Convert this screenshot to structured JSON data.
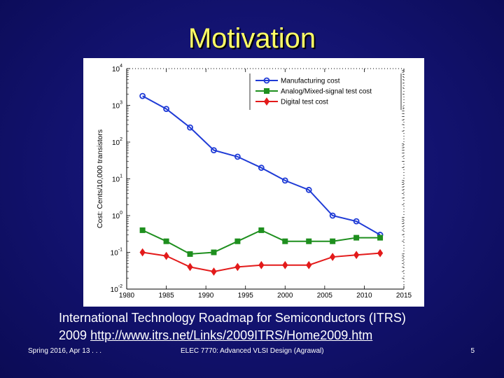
{
  "slide": {
    "title": "Motivation",
    "caption_line1": "International Technology Roadmap for Semiconductors (ITRS)",
    "caption_year": "2009",
    "caption_link": "http://www.itrs.net/Links/2009ITRS/Home2009.htm",
    "footer_left": "Spring 2016, Apr 13 . . .",
    "footer_center": "ELEC 7770: Advanced VLSI Design (Agrawal)",
    "footer_right": "5"
  },
  "colors": {
    "background": "#12126e",
    "title": "#ffff66",
    "manufacturing": "#1f3bd6",
    "analog": "#1e8f1e",
    "digital": "#e31a1a"
  },
  "chart_data": {
    "type": "line",
    "xlabel": "",
    "ylabel": "Cost: Cents/10,000 transistors",
    "yscale": "log",
    "xlim": [
      1980,
      2015
    ],
    "ylim": [
      0.01,
      10000
    ],
    "x_ticks": [
      "1980",
      "1985",
      "1990",
      "1995",
      "2000",
      "2005",
      "2010",
      "2015"
    ],
    "y_ticks": [
      {
        "base": "10",
        "exp": "-2",
        "value": 0.01
      },
      {
        "base": "10",
        "exp": "-1",
        "value": 0.1
      },
      {
        "base": "10",
        "exp": "0",
        "value": 1
      },
      {
        "base": "10",
        "exp": "1",
        "value": 10
      },
      {
        "base": "10",
        "exp": "2",
        "value": 100
      },
      {
        "base": "10",
        "exp": "3",
        "value": 1000
      },
      {
        "base": "10",
        "exp": "4",
        "value": 10000
      }
    ],
    "grid": false,
    "legend_position": "top-right",
    "series": [
      {
        "name": "Manufacturing cost",
        "color": "#1f3bd6",
        "marker": "circle",
        "x": [
          1982,
          1985,
          1988,
          1991,
          1994,
          1997,
          2000,
          2003,
          2006,
          2009,
          2012
        ],
        "values": [
          1800,
          800,
          250,
          60,
          40,
          20,
          9,
          5,
          1.0,
          0.7,
          0.3
        ]
      },
      {
        "name": "Analog/Mixed-signal test cost",
        "color": "#1e8f1e",
        "marker": "square",
        "x": [
          1982,
          1985,
          1988,
          1991,
          1994,
          1997,
          2000,
          2003,
          2006,
          2009,
          2012
        ],
        "values": [
          0.4,
          0.2,
          0.09,
          0.1,
          0.2,
          0.4,
          0.2,
          0.2,
          0.2,
          0.25,
          0.25
        ]
      },
      {
        "name": "Digital test cost",
        "color": "#e31a1a",
        "marker": "diamond",
        "x": [
          1982,
          1985,
          1988,
          1991,
          1994,
          1997,
          2000,
          2003,
          2006,
          2009,
          2012
        ],
        "values": [
          0.1,
          0.08,
          0.04,
          0.03,
          0.04,
          0.045,
          0.045,
          0.045,
          0.075,
          0.085,
          0.095
        ]
      }
    ]
  }
}
